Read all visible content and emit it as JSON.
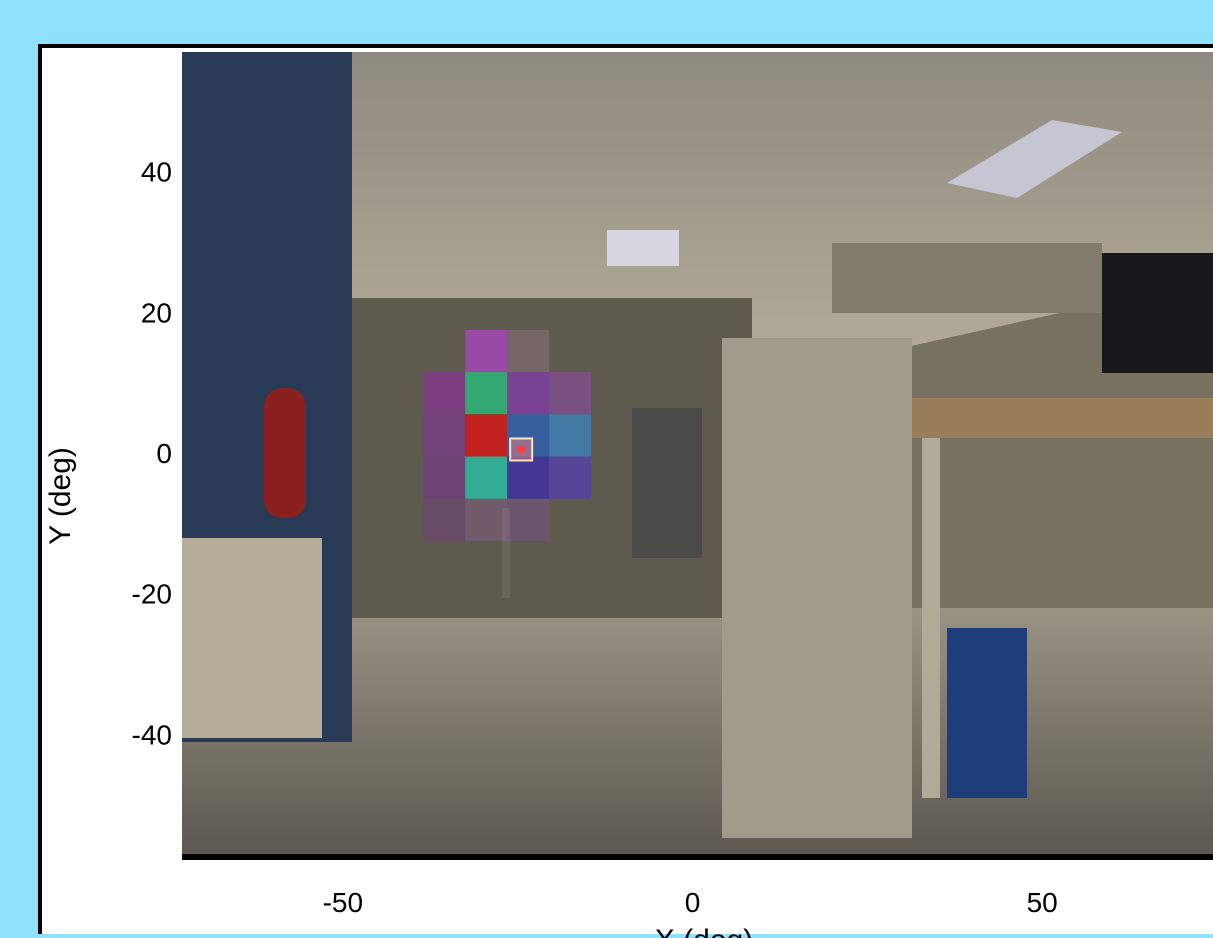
{
  "chart_data": {
    "type": "heatmap",
    "title": "",
    "xlabel": "X (deg)",
    "ylabel": "Y (deg)",
    "xlim": [
      -73,
      75
    ],
    "ylim": [
      -57,
      57
    ],
    "xticks": [
      -50,
      0,
      50
    ],
    "xtick_labels": [
      "-50",
      "0",
      "50"
    ],
    "yticks": [
      40,
      20,
      0,
      -20,
      -40
    ],
    "ytick_labels": [
      "40",
      "20",
      "0",
      "-20",
      "-40"
    ],
    "grid": false,
    "cell_size_deg": 6,
    "cells": [
      {
        "x": -29.5,
        "y": 14.5,
        "color": "#c040e0",
        "opacity": 0.6
      },
      {
        "x": -23.5,
        "y": 14.5,
        "color": "#b890b0",
        "opacity": 0.25
      },
      {
        "x": -35.5,
        "y": 8.5,
        "color": "#a020c0",
        "opacity": 0.45
      },
      {
        "x": -29.5,
        "y": 8.5,
        "color": "#20c880",
        "opacity": 0.7
      },
      {
        "x": -23.5,
        "y": 8.5,
        "color": "#9030d0",
        "opacity": 0.55
      },
      {
        "x": -17.5,
        "y": 8.5,
        "color": "#a040d0",
        "opacity": 0.4
      },
      {
        "x": -35.5,
        "y": 2.5,
        "color": "#9020c0",
        "opacity": 0.4
      },
      {
        "x": -29.5,
        "y": 2.5,
        "color": "#e01010",
        "opacity": 0.75
      },
      {
        "x": -23.5,
        "y": 2.5,
        "color": "#1a60d0",
        "opacity": 0.6
      },
      {
        "x": -17.5,
        "y": 2.5,
        "color": "#3090e0",
        "opacity": 0.6
      },
      {
        "x": -35.5,
        "y": -3.5,
        "color": "#8020b0",
        "opacity": 0.4
      },
      {
        "x": -29.5,
        "y": -3.5,
        "color": "#20d0b0",
        "opacity": 0.7
      },
      {
        "x": -23.5,
        "y": -3.5,
        "color": "#3020c0",
        "opacity": 0.6
      },
      {
        "x": -17.5,
        "y": -3.5,
        "color": "#5030e0",
        "opacity": 0.5
      },
      {
        "x": -35.5,
        "y": -9.5,
        "color": "#8030a0",
        "opacity": 0.3
      },
      {
        "x": -29.5,
        "y": -9.5,
        "color": "#a060b0",
        "opacity": 0.3
      },
      {
        "x": -23.5,
        "y": -9.5,
        "color": "#9050b0",
        "opacity": 0.3
      }
    ],
    "marker": {
      "x": -24.5,
      "y": 0.5,
      "color": "#f08080"
    }
  }
}
